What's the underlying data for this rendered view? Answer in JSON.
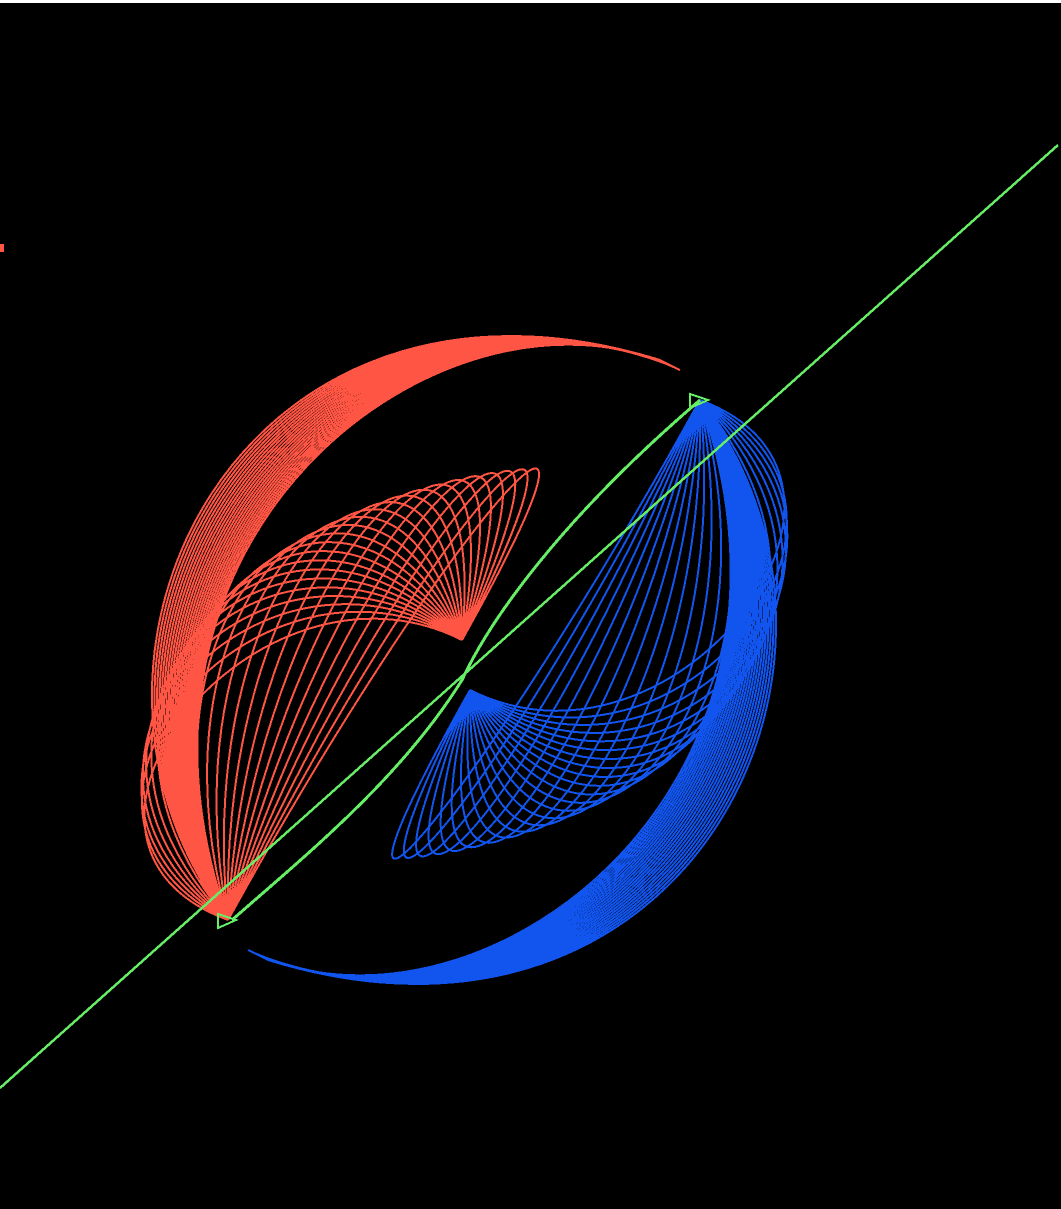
{
  "scene": {
    "background_color": "#000000",
    "top_strip_color": "#ffffff",
    "axis_color": "#66ee66",
    "field_color_a": "#ff5544",
    "field_color_b": "#1155ee",
    "field_loop_count": 24,
    "point_markers": [
      "pole-marker-upper",
      "pole-marker-lower"
    ]
  }
}
